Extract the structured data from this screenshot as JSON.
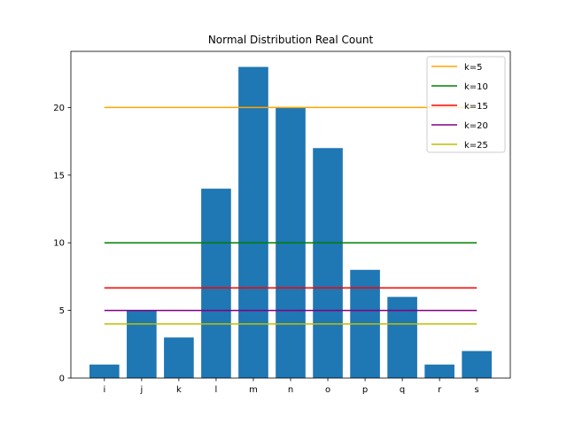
{
  "chart_data": {
    "type": "bar",
    "title": "Normal Distribution Real Count",
    "xlabel": "",
    "ylabel": "",
    "categories": [
      "i",
      "j",
      "k",
      "l",
      "m",
      "n",
      "o",
      "p",
      "q",
      "r",
      "s"
    ],
    "values": [
      1,
      5,
      3,
      14,
      23,
      20,
      17,
      8,
      6,
      1,
      2
    ],
    "bar_color": "#1f77b4",
    "ylim": [
      0,
      24.15
    ],
    "yticks": [
      0,
      5,
      10,
      15,
      20
    ],
    "lines": [
      {
        "name": "k=5",
        "value": 20,
        "color": "#ffa500"
      },
      {
        "name": "k=10",
        "value": 10,
        "color": "#008000"
      },
      {
        "name": "k=15",
        "value": 6.67,
        "color": "#ff0000"
      },
      {
        "name": "k=20",
        "value": 5,
        "color": "#800080"
      },
      {
        "name": "k=25",
        "value": 4,
        "color": "#bfbf00"
      }
    ],
    "legend": "top-right",
    "grid": false
  }
}
